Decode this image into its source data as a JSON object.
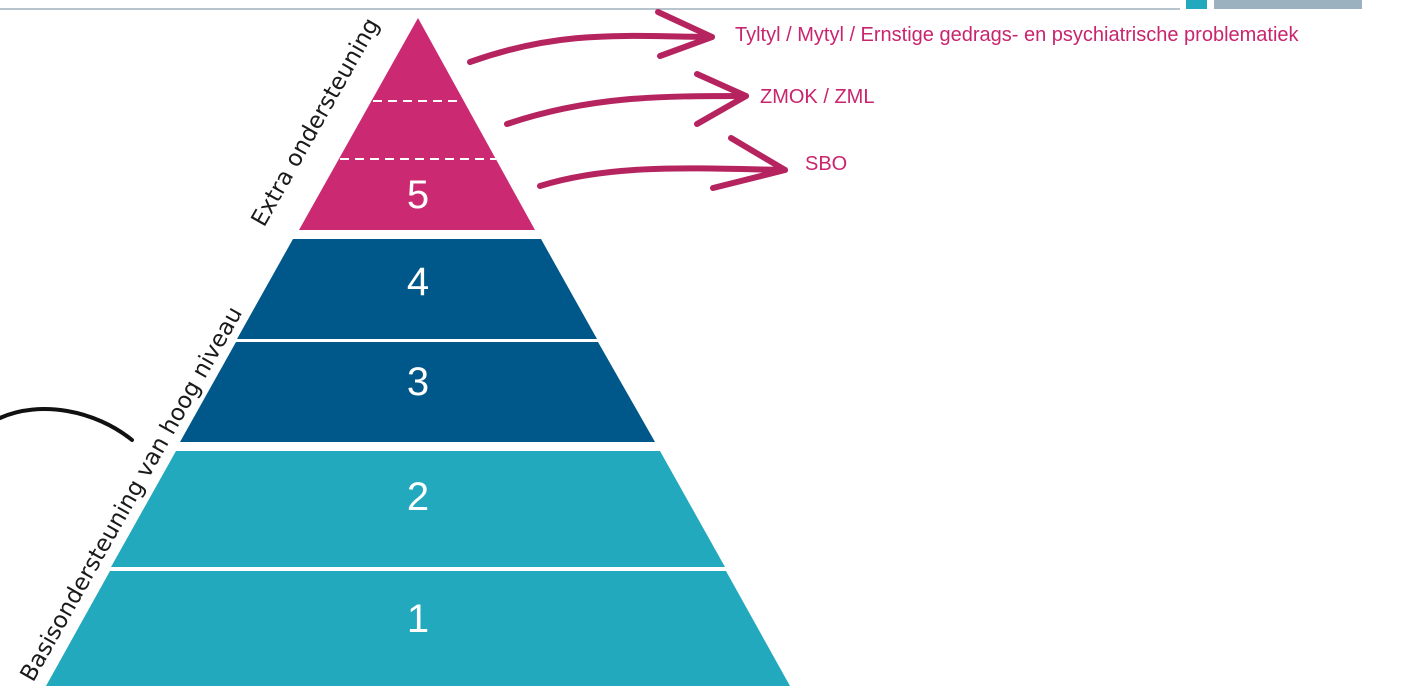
{
  "colors": {
    "extra": "#cb2a73",
    "mid": "#00578a",
    "base": "#22a9bd",
    "arrow": "#b5245f",
    "label_text": "#c9246e",
    "topline": "#9fb0be",
    "corner_teal": "#22a9bd",
    "corner_grey": "#9cb1bf",
    "pointer": "#111111"
  },
  "side_labels": {
    "extra": "Extra ondersteuning",
    "basis": "Basisondersteuning van hoog niveau"
  },
  "levels": [
    {
      "label": "5",
      "group": "extra"
    },
    {
      "label": "4",
      "group": "mid"
    },
    {
      "label": "3",
      "group": "mid"
    },
    {
      "label": "2",
      "group": "base"
    },
    {
      "label": "1",
      "group": "base"
    }
  ],
  "arrows": [
    {
      "label": "Tyltyl / Mytyl / Ernstige gedrags- en psychiatrische problematiek"
    },
    {
      "label": "ZMOK / ZML"
    },
    {
      "label": "SBO"
    }
  ]
}
